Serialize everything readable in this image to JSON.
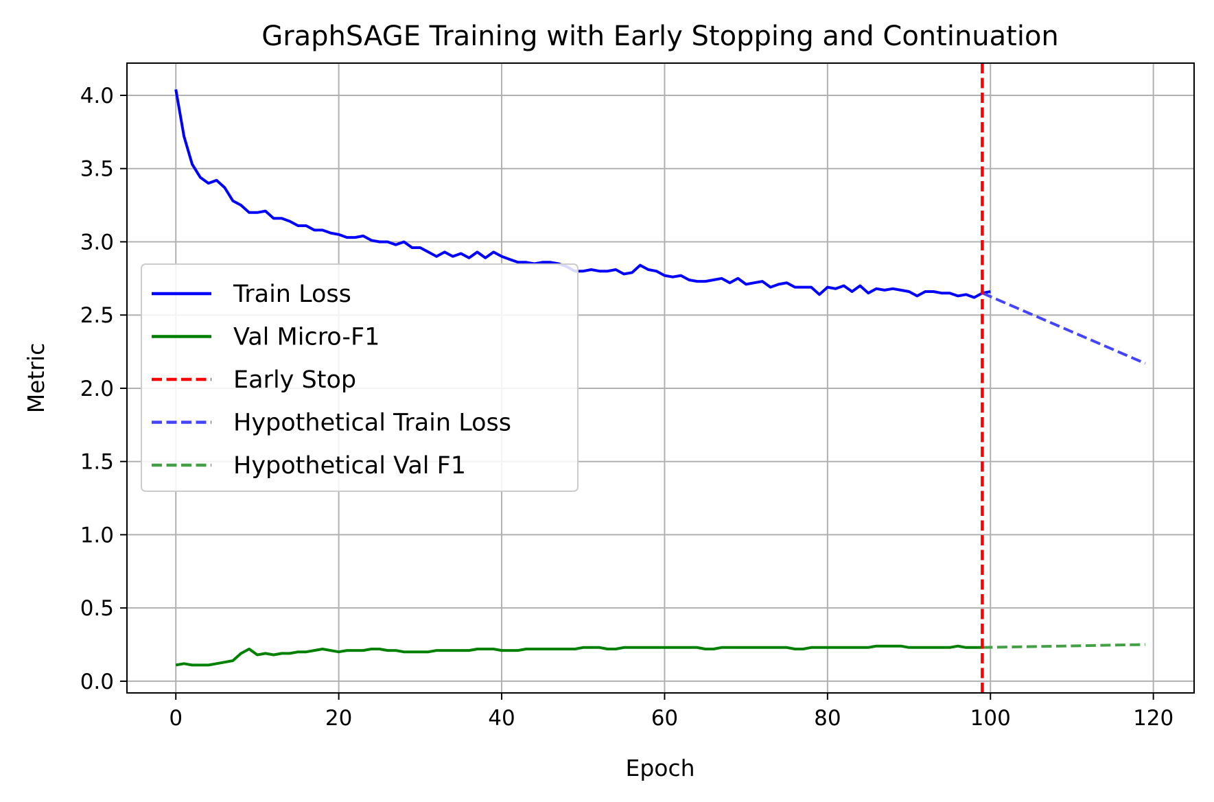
{
  "chart_data": {
    "type": "line",
    "title": "GraphSAGE Training with Early Stopping and Continuation",
    "xlabel": "Epoch",
    "ylabel": "Metric",
    "xlim": [
      -6,
      125
    ],
    "ylim": [
      -0.08,
      4.22
    ],
    "xticks": [
      0,
      20,
      40,
      60,
      80,
      100,
      120
    ],
    "yticks": [
      0.0,
      0.5,
      1.0,
      1.5,
      2.0,
      2.5,
      3.0,
      3.5,
      4.0
    ],
    "grid": true,
    "legend_position": "center-left",
    "series": [
      {
        "name": "Train Loss",
        "color": "#0000ff",
        "style": "solid",
        "x_start": 0,
        "values": [
          4.04,
          3.72,
          3.53,
          3.44,
          3.4,
          3.42,
          3.37,
          3.28,
          3.25,
          3.2,
          3.2,
          3.21,
          3.16,
          3.16,
          3.14,
          3.11,
          3.11,
          3.08,
          3.08,
          3.06,
          3.05,
          3.03,
          3.03,
          3.04,
          3.01,
          3.0,
          3.0,
          2.98,
          3.0,
          2.96,
          2.96,
          2.93,
          2.9,
          2.93,
          2.9,
          2.92,
          2.89,
          2.93,
          2.89,
          2.93,
          2.9,
          2.88,
          2.86,
          2.86,
          2.85,
          2.86,
          2.86,
          2.85,
          2.83,
          2.8,
          2.8,
          2.81,
          2.8,
          2.8,
          2.81,
          2.78,
          2.79,
          2.84,
          2.81,
          2.8,
          2.77,
          2.76,
          2.77,
          2.74,
          2.73,
          2.73,
          2.74,
          2.75,
          2.72,
          2.75,
          2.71,
          2.72,
          2.73,
          2.69,
          2.71,
          2.72,
          2.69,
          2.69,
          2.69,
          2.64,
          2.69,
          2.68,
          2.7,
          2.66,
          2.7,
          2.65,
          2.68,
          2.67,
          2.68,
          2.67,
          2.66,
          2.63,
          2.66,
          2.66,
          2.65,
          2.65,
          2.63,
          2.64,
          2.62,
          2.65,
          2.66
        ]
      },
      {
        "name": "Val Micro-F1",
        "color": "#008000",
        "style": "solid",
        "x_start": 0,
        "values": [
          0.11,
          0.12,
          0.11,
          0.11,
          0.11,
          0.12,
          0.13,
          0.14,
          0.19,
          0.22,
          0.18,
          0.19,
          0.18,
          0.19,
          0.19,
          0.2,
          0.2,
          0.21,
          0.22,
          0.21,
          0.2,
          0.21,
          0.21,
          0.21,
          0.22,
          0.22,
          0.21,
          0.21,
          0.2,
          0.2,
          0.2,
          0.2,
          0.21,
          0.21,
          0.21,
          0.21,
          0.21,
          0.22,
          0.22,
          0.22,
          0.21,
          0.21,
          0.21,
          0.22,
          0.22,
          0.22,
          0.22,
          0.22,
          0.22,
          0.22,
          0.23,
          0.23,
          0.23,
          0.22,
          0.22,
          0.23,
          0.23,
          0.23,
          0.23,
          0.23,
          0.23,
          0.23,
          0.23,
          0.23,
          0.23,
          0.22,
          0.22,
          0.23,
          0.23,
          0.23,
          0.23,
          0.23,
          0.23,
          0.23,
          0.23,
          0.23,
          0.22,
          0.22,
          0.23,
          0.23,
          0.23,
          0.23,
          0.23,
          0.23,
          0.23,
          0.23,
          0.24,
          0.24,
          0.24,
          0.24,
          0.23,
          0.23,
          0.23,
          0.23,
          0.23,
          0.23,
          0.24,
          0.23,
          0.23,
          0.23
        ]
      },
      {
        "name": "Hypothetical Train Loss",
        "color": "#4444ff",
        "style": "dashed",
        "x": [
          99,
          119
        ],
        "values": [
          2.65,
          2.17
        ]
      },
      {
        "name": "Hypothetical Val F1",
        "color": "#44a044",
        "style": "dashed",
        "x": [
          99,
          119
        ],
        "values": [
          0.23,
          0.25
        ]
      }
    ],
    "vlines": [
      {
        "name": "Early Stop",
        "x": 99,
        "color": "#ff0000",
        "style": "dashed"
      }
    ]
  }
}
